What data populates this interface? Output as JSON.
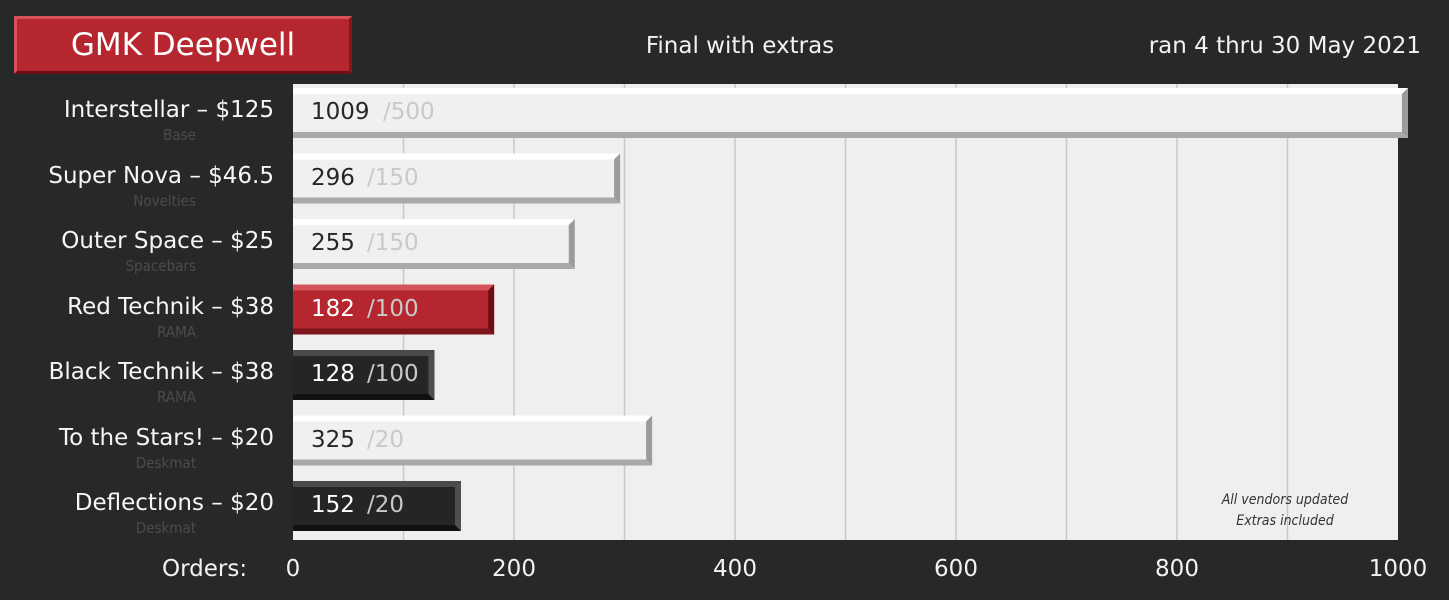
{
  "header": {
    "title": "GMK Deepwell",
    "subtitle": "Final with extras",
    "date_range": "ran 4 thru 30 May 2021"
  },
  "chart_data": {
    "type": "bar",
    "orientation": "horizontal",
    "xlabel": "Orders:",
    "xlim": [
      0,
      1000
    ],
    "xticks": [
      0,
      200,
      400,
      600,
      800,
      1000
    ],
    "grid": true,
    "categories": [
      "Interstellar – $125",
      "Super Nova – $46.5",
      "Outer Space – $25",
      "Red Technik – $38",
      "Black Technik – $38",
      "To the Stars! – $20",
      "Deflections – $20"
    ],
    "subcategories": [
      "Base",
      "Novelties",
      "Spacebars",
      "RAMA",
      "RAMA",
      "Deskmat",
      "Deskmat"
    ],
    "values": [
      1009,
      296,
      255,
      182,
      128,
      325,
      152
    ],
    "targets": [
      500,
      150,
      150,
      100,
      100,
      20,
      20
    ],
    "target_labels": [
      "/500",
      "/150",
      "/150",
      "/100",
      "/100",
      "/20",
      "/20"
    ],
    "bar_styles": [
      "light",
      "light",
      "light",
      "red",
      "dark",
      "light",
      "dark"
    ],
    "annotation": [
      "All vendors updated",
      "Extras included"
    ]
  },
  "colors": {
    "background": "#272828",
    "plot_background": "#f0efee",
    "gridline": "#c8c8c8",
    "light_bar": "#f0f0ef",
    "red_bar": "#b5262e",
    "dark_bar": "#252525"
  }
}
